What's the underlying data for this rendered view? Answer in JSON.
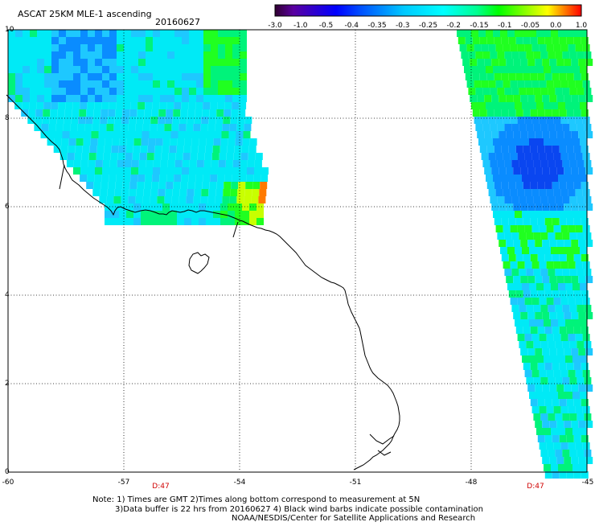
{
  "header": {
    "title": "ASCAT 25KM MLE-1 ascending",
    "date": "20160627"
  },
  "colorbar": {
    "ticks": [
      "-3.0",
      "-1.0",
      "-0.5",
      "-0.4",
      "-0.35",
      "-0.3",
      "-0.25",
      "-0.2",
      "-0.15",
      "-0.1",
      "-0.05",
      "0.0",
      "1.0"
    ],
    "colors": [
      "#300030",
      "#5a00a0",
      "#0000ff",
      "#0050ff",
      "#0090ff",
      "#00c8ff",
      "#00ffff",
      "#00ff90",
      "#00ff00",
      "#a0ff00",
      "#ffff00",
      "#ff8800",
      "#ff0000"
    ]
  },
  "axes": {
    "lon_labels": [
      "-60",
      "-57",
      "-54",
      "-51",
      "-48",
      "-45"
    ],
    "lat_labels": [
      "10",
      "8",
      "6",
      "4",
      "2",
      "0"
    ]
  },
  "time_labels": [
    "D:47",
    "D:47"
  ],
  "footer": {
    "line1": "Note: 1) Times are GMT 2)Times along bottom correspond to measurement at 5N",
    "line2": "3)Data buffer is 22 hrs from 20160627 4) Black wind barbs indicate possible contamination",
    "line3": "NOAA/NESDIS/Center for Satellite Applications and Research"
  },
  "swath_colors": {
    "cyan": "#00eaf6",
    "light_blue": "#1ec8ff",
    "blue": "#0a8cff",
    "deep_blue": "#0a46f0",
    "green": "#00f37a",
    "bright_green": "#20ff20",
    "yellow_green": "#c8ff00",
    "orange": "#ff7a00"
  }
}
